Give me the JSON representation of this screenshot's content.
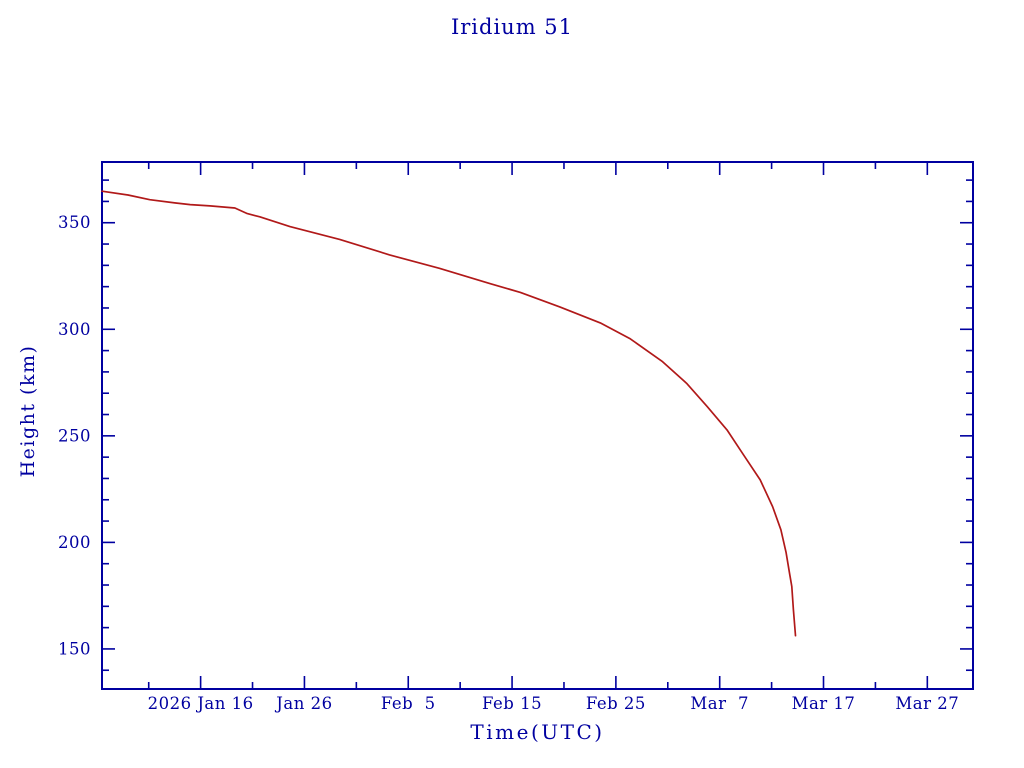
{
  "colors": {
    "background": "#ffffff",
    "axis": "#0000a0",
    "curve": "#b11919"
  },
  "chart_data": {
    "type": "line",
    "title": "Iridium 51",
    "xlabel": "Time(UTC)",
    "ylabel": "Height (km)",
    "x_unit": "day of year 2026",
    "xlim": [
      6.5,
      90.4
    ],
    "ylim": [
      131.2,
      378.5
    ],
    "grid": false,
    "frame_ticks_all_sides": true,
    "x_ticks_major": [
      {
        "day": 16,
        "label": "2026 Jan 16"
      },
      {
        "day": 26,
        "label": "Jan 26"
      },
      {
        "day": 36,
        "label": "Feb  5"
      },
      {
        "day": 46,
        "label": "Feb 15"
      },
      {
        "day": 56,
        "label": "Feb 25"
      },
      {
        "day": 66,
        "label": "Mar  7"
      },
      {
        "day": 76,
        "label": "Mar 17"
      },
      {
        "day": 86,
        "label": "Mar 27"
      }
    ],
    "x_ticks_minor_days": [
      11,
      21,
      31,
      41,
      51,
      61,
      71,
      81
    ],
    "y_ticks_major": [
      150,
      200,
      250,
      300,
      350
    ],
    "y_ticks_minor_step": 10,
    "series": [
      {
        "name": "height",
        "color": "#b11919",
        "points": [
          [
            6.5,
            364.8
          ],
          [
            9.0,
            363.0
          ],
          [
            11.1,
            360.8
          ],
          [
            13.5,
            359.3
          ],
          [
            15.0,
            358.5
          ],
          [
            16.9,
            357.9
          ],
          [
            19.3,
            356.9
          ],
          [
            20.5,
            354.3
          ],
          [
            21.7,
            352.8
          ],
          [
            24.6,
            348.2
          ],
          [
            29.4,
            342.2
          ],
          [
            34.2,
            334.9
          ],
          [
            39.0,
            328.6
          ],
          [
            43.9,
            321.4
          ],
          [
            46.8,
            317.3
          ],
          [
            50.6,
            310.5
          ],
          [
            54.5,
            303.0
          ],
          [
            57.4,
            295.5
          ],
          [
            60.5,
            284.8
          ],
          [
            62.8,
            274.7
          ],
          [
            64.8,
            263.7
          ],
          [
            66.7,
            252.8
          ],
          [
            68.2,
            241.8
          ],
          [
            69.9,
            229.3
          ],
          [
            71.1,
            216.8
          ],
          [
            71.9,
            205.9
          ],
          [
            72.4,
            195.2
          ],
          [
            72.75,
            184.8
          ],
          [
            72.95,
            179.3
          ],
          [
            73.1,
            168.4
          ],
          [
            73.3,
            156.2
          ]
        ]
      }
    ]
  }
}
